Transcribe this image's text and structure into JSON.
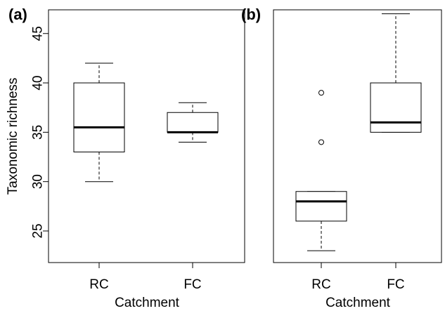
{
  "chart_data": [
    {
      "type": "box",
      "panel_label": "(a)",
      "categories": [
        "RC",
        "FC"
      ],
      "xlabel": "Catchment",
      "ylabel": "Taxonomic richness",
      "ylim": [
        21.8,
        47.4
      ],
      "yticks": [
        "25",
        "30",
        "35",
        "40",
        "45"
      ],
      "boxes": [
        {
          "category": "RC",
          "whisker_low": 30,
          "q1": 33,
          "median": 35.5,
          "q3": 40,
          "whisker_high": 42,
          "outliers": []
        },
        {
          "category": "FC",
          "whisker_low": 34,
          "q1": 35,
          "median": 35,
          "q3": 37,
          "whisker_high": 38,
          "outliers": []
        }
      ]
    },
    {
      "type": "box",
      "panel_label": "(b)",
      "categories": [
        "RC",
        "FC"
      ],
      "xlabel": "Catchment",
      "ylabel": "",
      "ylim": [
        21.8,
        47.4
      ],
      "yticks": [],
      "boxes": [
        {
          "category": "RC",
          "whisker_low": 23,
          "q1": 26,
          "median": 28,
          "q3": 29,
          "whisker_high": 29,
          "outliers": [
            34,
            39
          ]
        },
        {
          "category": "FC",
          "whisker_low": 35,
          "q1": 35,
          "median": 36,
          "q3": 40,
          "whisker_high": 47,
          "outliers": []
        }
      ]
    }
  ]
}
